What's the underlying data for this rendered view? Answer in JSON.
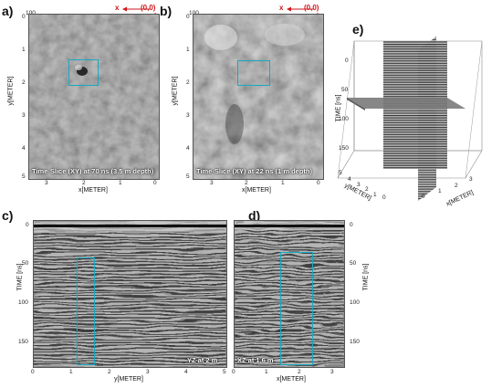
{
  "panel_labels": {
    "a": "a)",
    "b": "b)",
    "c": "c)",
    "d": "d)",
    "e": "e)"
  },
  "origin": {
    "x_symbol": "x",
    "y_symbol": "y",
    "origin_label": "(0,0)"
  },
  "panel_a": {
    "top_value": "100",
    "x_ticks": [
      "3",
      "2",
      "1",
      "0"
    ],
    "y_ticks": [
      "0",
      "1",
      "2",
      "3",
      "4",
      "5"
    ],
    "x_label": "x[METER]",
    "y_label": "y[METER]",
    "caption": "Time-Slice (XY) at 70 ns (3.5 m depth)"
  },
  "panel_b": {
    "top_value": "100",
    "x_ticks": [
      "3",
      "2",
      "1",
      "0"
    ],
    "y_ticks": [
      "0",
      "1",
      "2",
      "3",
      "4",
      "5"
    ],
    "x_label": "x[METER]",
    "y_label": "y[METER]",
    "caption": "Time-Slice (XY) at 22 ns (1 m depth)"
  },
  "panel_c": {
    "x_ticks": [
      "0",
      "1",
      "2",
      "3",
      "4",
      "5"
    ],
    "y_ticks": [
      "0",
      "50",
      "100",
      "150"
    ],
    "x_label": "y[METER]",
    "y_label": "TIME [ns]",
    "caption": "YZ at 2 m"
  },
  "panel_d": {
    "x_ticks": [
      "0",
      "1",
      "2",
      "3"
    ],
    "y_ticks": [
      "0",
      "50",
      "100",
      "150"
    ],
    "x_label": "x[METER]",
    "y_label": "TIME [ns]",
    "caption": "XZ at 1.6 m"
  },
  "panel_e": {
    "time_ticks": [
      "0",
      "50",
      "100",
      "150"
    ],
    "time_label": "TIME [ns]",
    "y_ticks": [
      "5",
      "4",
      "3",
      "2",
      "1",
      "0"
    ],
    "y_label": "y[METER]",
    "x_ticks": [
      "0",
      "1",
      "2",
      "3"
    ],
    "x_label": "x[METER]"
  }
}
